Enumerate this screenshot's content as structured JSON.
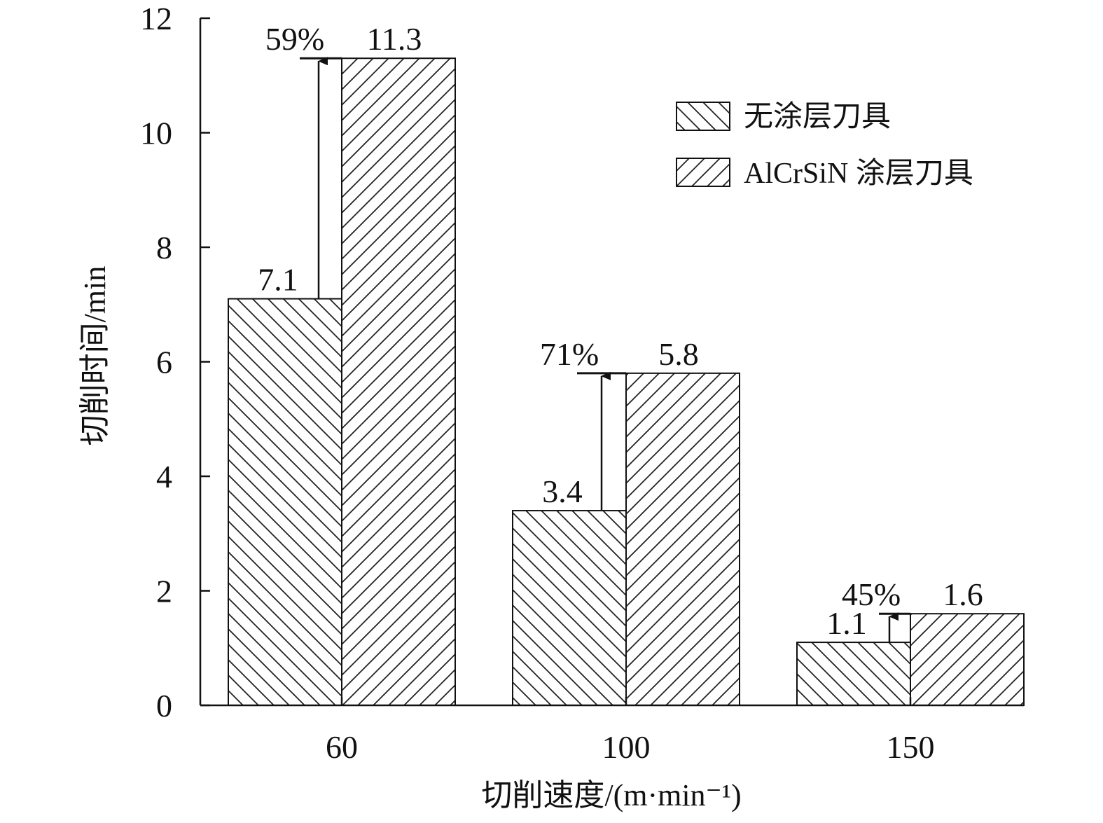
{
  "chart_data": {
    "type": "bar",
    "categories": [
      "60",
      "100",
      "150"
    ],
    "series": [
      {
        "name": "无涂层刀具",
        "values": [
          7.1,
          3.4,
          1.1
        ],
        "hatch": "backslash"
      },
      {
        "name": "AlCrSiN 涂层刀具",
        "values": [
          11.3,
          5.8,
          1.6
        ],
        "hatch": "slash"
      }
    ],
    "data_labels": {
      "uncoated": [
        "7.1",
        "3.4",
        "1.1"
      ],
      "coated": [
        "11.3",
        "5.8",
        "1.6"
      ]
    },
    "improvement_labels": [
      "59%",
      "71%",
      "45%"
    ],
    "xlabel": "切削速度/(m·min⁻¹)",
    "ylabel": "切削时间/min",
    "ylim": [
      0,
      12
    ],
    "yticks": [
      "0",
      "2",
      "4",
      "6",
      "8",
      "10",
      "12"
    ],
    "legend": {
      "position": "top-right"
    },
    "grid": false,
    "colors": {
      "axis": "#111111",
      "bar_fill": "#ffffff",
      "hatch": "#222222"
    }
  }
}
